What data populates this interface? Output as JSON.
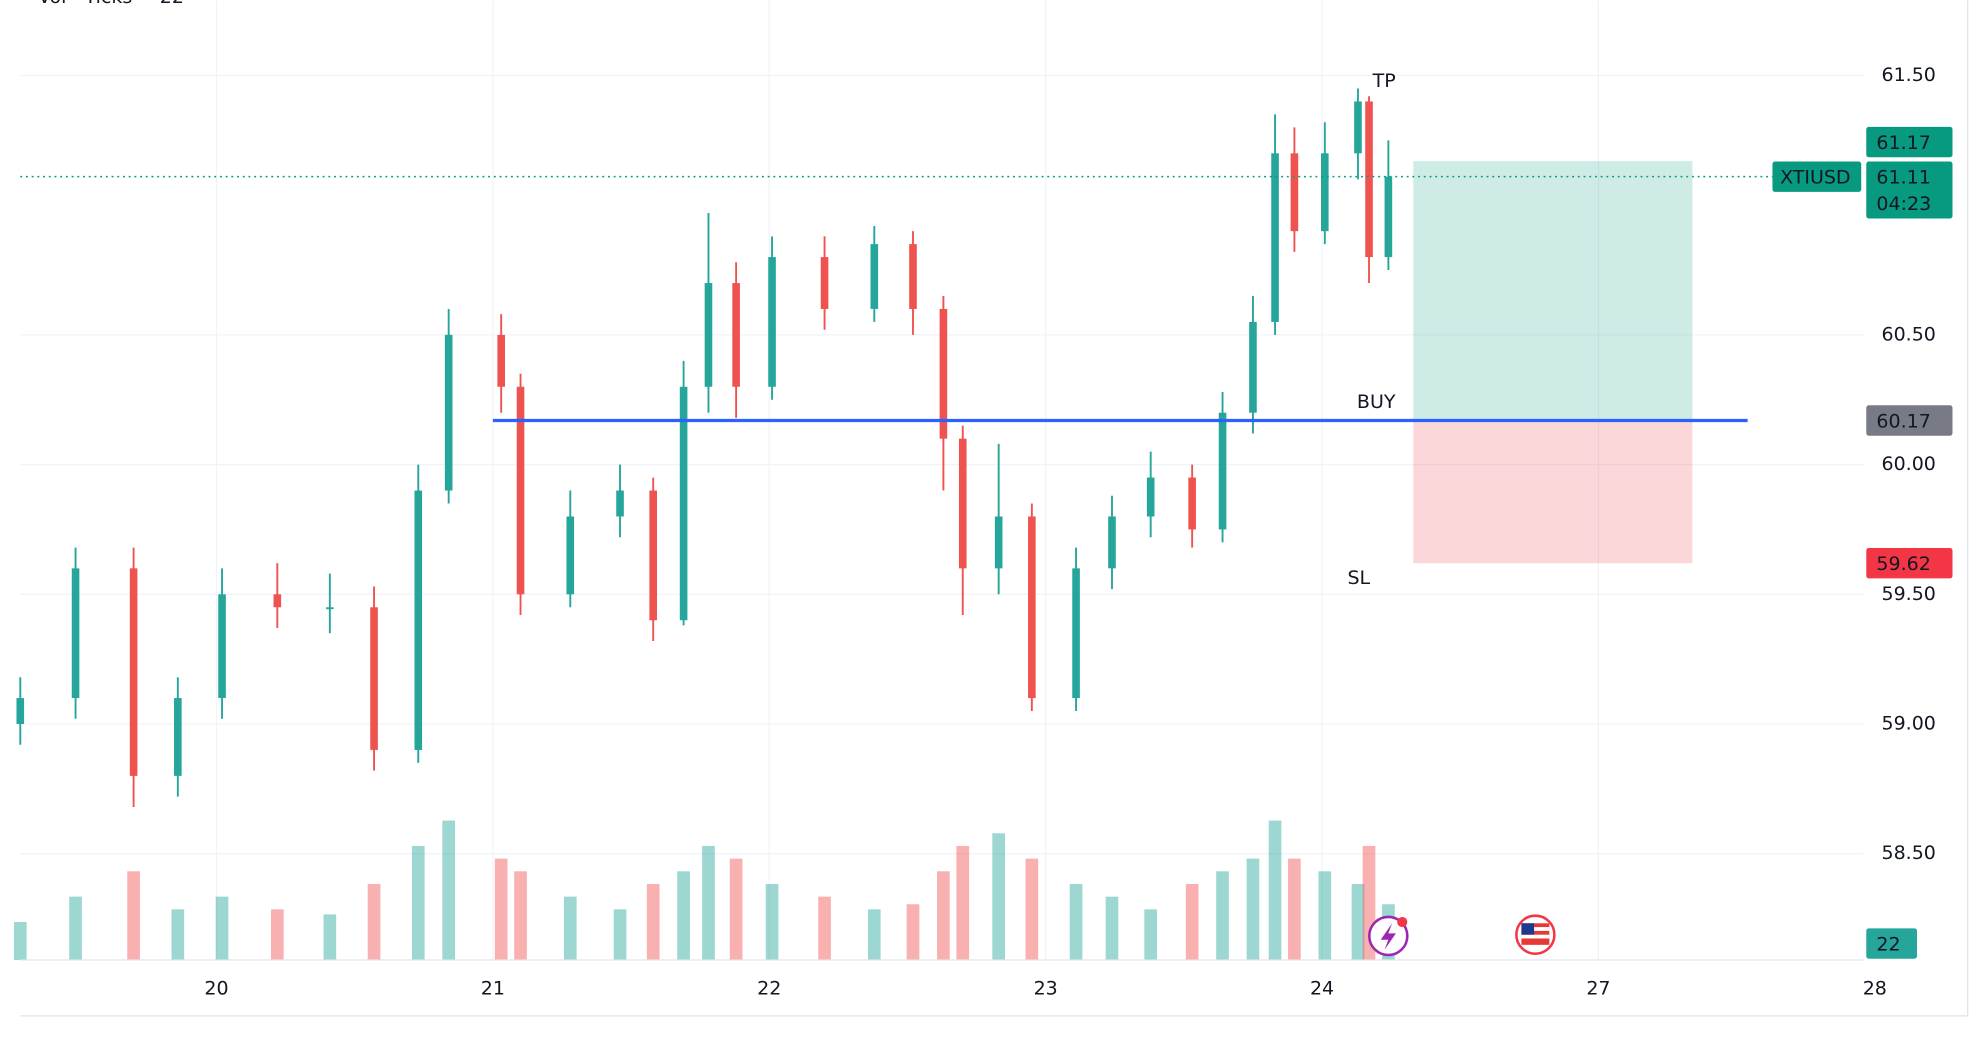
{
  "chart_data": {
    "type": "candlestick",
    "symbol": "XTIUSD",
    "legend_label": "Vol · Ticks",
    "countdown": "04:23",
    "x": [
      0.29,
      0.49,
      0.7,
      0.86,
      1.02,
      1.22,
      1.41,
      1.57,
      1.73,
      1.84,
      2.03,
      2.1,
      2.28,
      2.46,
      2.58,
      2.69,
      2.78,
      2.88,
      3.01,
      3.2,
      3.38,
      3.52,
      3.63,
      3.7,
      3.83,
      3.95,
      4.11,
      4.24,
      4.38,
      4.53,
      4.64,
      4.75,
      4.83,
      4.9,
      5.01,
      5.13,
      5.17,
      5.24
    ],
    "open": [
      59.0,
      59.1,
      59.6,
      58.8,
      59.1,
      59.5,
      59.45,
      59.45,
      58.9,
      59.9,
      60.5,
      60.3,
      59.5,
      59.8,
      59.9,
      59.4,
      60.3,
      60.7,
      60.3,
      60.8,
      60.6,
      60.85,
      60.6,
      60.1,
      59.6,
      59.8,
      59.1,
      59.6,
      59.8,
      59.95,
      59.75,
      60.2,
      60.55,
      61.2,
      60.9,
      61.2,
      61.4,
      60.8
    ],
    "high": [
      59.18,
      59.68,
      59.68,
      59.18,
      59.6,
      59.62,
      59.58,
      59.53,
      60.0,
      60.6,
      60.58,
      60.35,
      59.9,
      60.0,
      59.95,
      60.4,
      60.97,
      60.78,
      60.88,
      60.88,
      60.92,
      60.9,
      60.65,
      60.15,
      60.08,
      59.85,
      59.68,
      59.88,
      60.05,
      60.0,
      60.28,
      60.65,
      61.35,
      61.3,
      61.32,
      61.45,
      61.42,
      61.25
    ],
    "low": [
      58.92,
      59.02,
      58.68,
      58.72,
      59.02,
      59.37,
      59.35,
      58.82,
      58.85,
      59.85,
      60.2,
      59.42,
      59.45,
      59.72,
      59.32,
      59.38,
      60.2,
      60.18,
      60.25,
      60.52,
      60.55,
      60.5,
      59.9,
      59.42,
      59.5,
      59.05,
      59.05,
      59.52,
      59.72,
      59.68,
      59.7,
      60.12,
      60.5,
      60.82,
      60.85,
      61.1,
      60.7,
      60.75
    ],
    "close": [
      59.1,
      59.6,
      58.8,
      59.1,
      59.5,
      59.45,
      59.45,
      58.9,
      59.9,
      60.5,
      60.3,
      59.5,
      59.8,
      59.9,
      59.4,
      60.3,
      60.7,
      60.3,
      60.8,
      60.6,
      60.85,
      60.6,
      60.1,
      59.6,
      59.8,
      59.1,
      59.6,
      59.8,
      59.95,
      59.75,
      60.2,
      60.55,
      61.2,
      60.9,
      61.2,
      61.4,
      60.8,
      61.11
    ],
    "volume": [
      15,
      25,
      35,
      20,
      25,
      20,
      18,
      30,
      45,
      55,
      40,
      35,
      25,
      20,
      30,
      35,
      45,
      40,
      30,
      25,
      20,
      22,
      35,
      45,
      50,
      40,
      30,
      25,
      20,
      30,
      35,
      40,
      55,
      40,
      35,
      30,
      45,
      22
    ],
    "volume_lim": [
      0,
      100
    ],
    "up_color": "#26a69a",
    "down_color": "#ef5350",
    "xlim": [
      0.29,
      6.96
    ],
    "xticks": [
      {
        "value": 1,
        "label": "20"
      },
      {
        "value": 2,
        "label": "21"
      },
      {
        "value": 3,
        "label": "22"
      },
      {
        "value": 4,
        "label": "23"
      },
      {
        "value": 5,
        "label": "24"
      },
      {
        "value": 6,
        "label": "27"
      },
      {
        "value": 7,
        "label": "28"
      }
    ],
    "ylim": [
      58.09,
      61.79
    ],
    "yticks": [
      {
        "value": 58.5,
        "label": "58.50"
      },
      {
        "value": 59,
        "label": "59.00"
      },
      {
        "value": 59.5,
        "label": "59.50"
      },
      {
        "value": 60,
        "label": "60.00"
      },
      {
        "value": 60.5,
        "label": "60.50"
      },
      {
        "value": 61.5,
        "label": "61.50"
      }
    ],
    "grid": true,
    "position": {
      "entry": 60.17,
      "take_profit": 61.17,
      "stop_loss": 59.62,
      "x_start": 5.33,
      "x_end": 6.34,
      "line_start": 2.0,
      "line_end": 6.54,
      "entry_label": "BUY",
      "take_profit_label": "TP",
      "stop_loss_label": "SL",
      "entry_price_label": "60.17",
      "take_profit_price_label": "61.17",
      "stop_loss_price_label": "59.62"
    },
    "last_price": 61.11,
    "last_price_label": "61.11"
  }
}
